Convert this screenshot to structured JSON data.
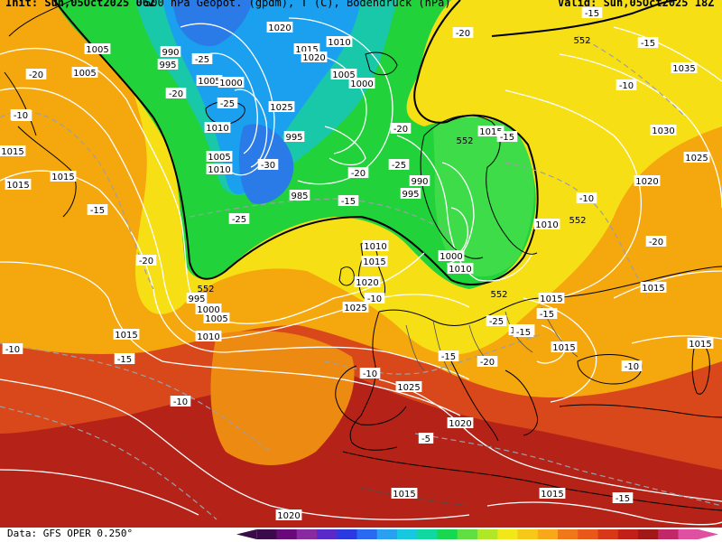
{
  "header": {
    "left": "Init: Sun,05Oct2025 06Z",
    "center": "500 hPa Geopot. (gpdm), T (C), Bodendruck (hPa)",
    "right": "Valid: Sun,05Oct2025 18Z"
  },
  "footer": {
    "data_source": "Data: GFS OPER 0.250°"
  },
  "colors": {
    "ocean_green": "#22d23a",
    "low_blue": "#1aa0ee",
    "yellow": "#f7df16",
    "orange": "#f5a70e",
    "red": "#d8481a",
    "dark_red": "#b52218"
  },
  "legend_colors": [
    "#3a0a4a",
    "#6a0a7a",
    "#8a2aa0",
    "#5a2ac8",
    "#2a3ae0",
    "#2a6af0",
    "#2aa0f0",
    "#18c8e0",
    "#10d8a0",
    "#18d850",
    "#60e040",
    "#b0e828",
    "#f0e818",
    "#f8c818",
    "#f8a818",
    "#f07818",
    "#e85818",
    "#d83818",
    "#c02018",
    "#a01818",
    "#c02868",
    "#e050a0"
  ],
  "isobars": [
    "1005",
    "1005",
    "990",
    "995",
    "1005",
    "1000",
    "1015",
    "1010",
    "1020",
    "1005",
    "1000",
    "1025",
    "1010",
    "995",
    "1005",
    "1010",
    "985",
    "990",
    "995",
    "1000",
    "995",
    "1005",
    "1000",
    "1010",
    "1015",
    "1020",
    "1025",
    "1030",
    "1035",
    "1015",
    "1020",
    "1025",
    "1010",
    "1015",
    "1015",
    "1015",
    "1015",
    "1015",
    "1010",
    "1015",
    "1025",
    "1020",
    "1015",
    "1015",
    "1020",
    "1015",
    "1015",
    "1015",
    "1020",
    "1010"
  ],
  "temperatures": [
    "-20",
    "-20",
    "-10",
    "-15",
    "-20",
    "-25",
    "-25",
    "-30",
    "-25",
    "-20",
    "-20",
    "-25",
    "-20",
    "-15",
    "-20",
    "-15",
    "-15",
    "-10",
    "-15",
    "-10",
    "-20",
    "-15",
    "-15",
    "-10",
    "-20",
    "-25",
    "-15",
    "-10",
    "-10",
    "-15",
    "-5",
    "-10",
    "-15",
    "-10"
  ],
  "geopotential": [
    "552",
    "552",
    "552",
    "552",
    "552"
  ]
}
